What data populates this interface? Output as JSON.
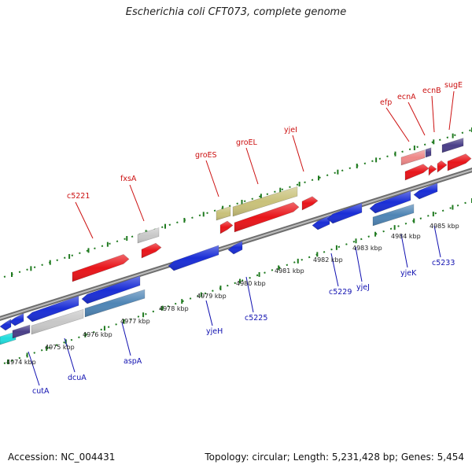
{
  "title": "Escherichia coli CFT073, complete genome",
  "footer": {
    "accession": "Accession: NC_004431",
    "summary": "Topology: circular; Length: 5,231,428 bp; Genes: 5,454"
  },
  "colors": {
    "fwd_gene": "#e8151a",
    "rev_gene": "#1a2ed6",
    "label_red": "#cc1010",
    "label_blue": "#1010b0",
    "backbone": "#8a8a8a",
    "ticks": "#1f7a1f",
    "olive": "#c9c17a",
    "steel": "#4f85b5",
    "grey": "#c8c8c8",
    "pink": "#ee8888",
    "navy": "#4a3f88",
    "cyan": "#22dddd"
  },
  "ticks": [
    "4974 kbp",
    "4975 kbp",
    "4976 kbp",
    "4977 kbp",
    "4978 kbp",
    "4979 kbp",
    "4980 kbp",
    "4981 kbp",
    "4982 kbp",
    "4983 kbp",
    "4984 kbp",
    "4985 kbp"
  ],
  "genes_top": [
    "c5221",
    "fxsA",
    "groES",
    "groEL",
    "yjeI",
    "efp",
    "ecnA",
    "ecnB",
    "sugE"
  ],
  "genes_bottom": [
    "cutA",
    "dcuA",
    "aspA",
    "yjeH",
    "c5225",
    "c5229",
    "yjeJ",
    "yjeK",
    "c5233"
  ]
}
